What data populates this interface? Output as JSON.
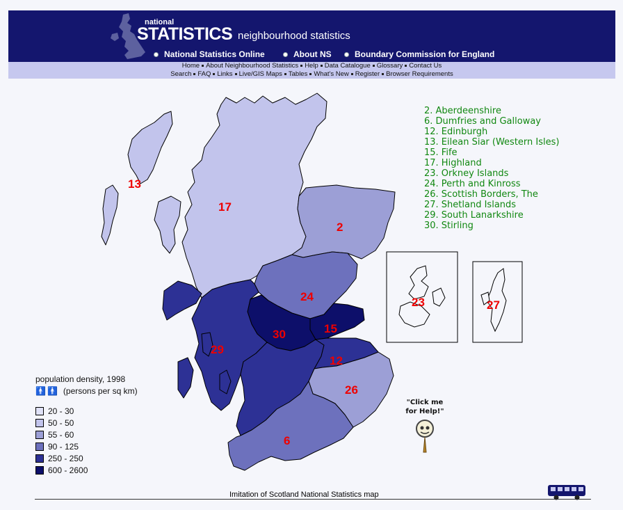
{
  "header": {
    "logo_small": "national",
    "logo_big": "STATISTICS",
    "site_title": "neighbourhood statistics",
    "nav": [
      "National Statistics Online",
      "About NS",
      "Boundary Commission for England"
    ]
  },
  "subnav": {
    "row1": [
      "Home",
      "About Neighbourhood Statistics",
      "Help",
      "Data Catalogue",
      "Glossary",
      "Contact Us"
    ],
    "row2": [
      "Search",
      "FAQ",
      "Links",
      "Live/GIS Maps",
      "Tables",
      "What's New",
      "Register",
      "Browser Requirements"
    ]
  },
  "map": {
    "labels": [
      {
        "id": "13",
        "text": "13"
      },
      {
        "id": "17",
        "text": "17"
      },
      {
        "id": "2",
        "text": "2"
      },
      {
        "id": "24",
        "text": "24"
      },
      {
        "id": "30",
        "text": "30"
      },
      {
        "id": "15",
        "text": "15"
      },
      {
        "id": "29",
        "text": "29"
      },
      {
        "id": "12",
        "text": "12"
      },
      {
        "id": "26",
        "text": "26"
      },
      {
        "id": "6",
        "text": "6"
      },
      {
        "id": "23",
        "text": "23"
      },
      {
        "id": "27",
        "text": "27"
      }
    ]
  },
  "regions": [
    "2. Aberdeenshire",
    "6. Dumfries and Galloway",
    "12. Edinburgh",
    "13. Eilean Siar (Western Isles)",
    "15. Fife",
    "17. Highland",
    "23. Orkney Islands",
    "24. Perth and Kinross",
    "26. Scottish Borders, The",
    "27. Shetland Islands",
    "29. South Lanarkshire",
    "30. Stirling"
  ],
  "legend": {
    "title": "population density, 1998",
    "unit": "(persons per sq km)",
    "classes": [
      {
        "label": "20 - 30",
        "color": "#e0e2f8"
      },
      {
        "label": "50 - 50",
        "color": "#c2c4ec"
      },
      {
        "label": "55 - 60",
        "color": "#9c9fd6"
      },
      {
        "label": "90 - 125",
        "color": "#6d71bd"
      },
      {
        "label": "250 - 250",
        "color": "#2d3195"
      },
      {
        "label": "600 - 2600",
        "color": "#0d0f6a"
      }
    ]
  },
  "help": {
    "line1": "\"Click me",
    "line2": "for Help!\""
  },
  "footer": {
    "caption": "Imitation of Scotland National Statistics map"
  }
}
